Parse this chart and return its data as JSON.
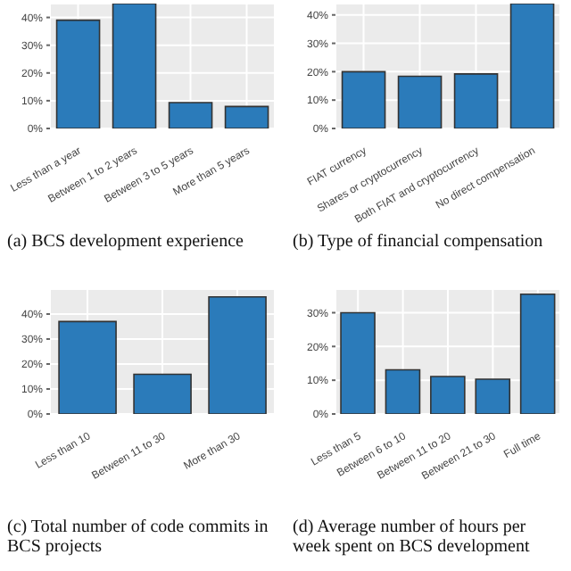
{
  "chart_data": [
    {
      "type": "bar",
      "title": "(a) BCS development experience",
      "categories": [
        "Less than a year",
        "Between 1 to 2 years",
        "Between 3 to 5 years",
        "More than 5 years"
      ],
      "values": [
        39,
        45,
        9.3,
        7.9
      ],
      "color": "#2b7bba",
      "ylim": [
        0,
        45
      ],
      "yticks": [
        {
          "value": 0,
          "label": "0%"
        },
        {
          "value": 10,
          "label": "10%"
        },
        {
          "value": 20,
          "label": "20%"
        },
        {
          "value": 30,
          "label": "30%"
        },
        {
          "value": 40,
          "label": "40%"
        }
      ],
      "grid": true
    },
    {
      "type": "bar",
      "title": "(b) Type of financial compensation",
      "categories": [
        "FIAT currency",
        "Shares or cryptocurrency",
        "Both FIAT and cryptocurrency",
        "No direct compensation"
      ],
      "values": [
        20,
        18.4,
        19.2,
        44
      ],
      "color": "#2b7bba",
      "ylim": [
        0,
        44
      ],
      "yticks": [
        {
          "value": 0,
          "label": "0%"
        },
        {
          "value": 10,
          "label": "10%"
        },
        {
          "value": 20,
          "label": "20%"
        },
        {
          "value": 30,
          "label": "30%"
        },
        {
          "value": 40,
          "label": "40%"
        }
      ],
      "grid": true
    },
    {
      "type": "bar",
      "title": "(c) Total number of code commits in BCS projects",
      "categories": [
        "Less than 10",
        "Between 11 to 30",
        "More than 30"
      ],
      "values": [
        37,
        15.9,
        46.9
      ],
      "color": "#2b7bba",
      "ylim": [
        0,
        50
      ],
      "yticks": [
        {
          "value": 0,
          "label": "0%"
        },
        {
          "value": 10,
          "label": "10%"
        },
        {
          "value": 20,
          "label": "20%"
        },
        {
          "value": 30,
          "label": "30%"
        },
        {
          "value": 40,
          "label": "40%"
        }
      ],
      "grid": true
    },
    {
      "type": "bar",
      "title": "(d) Average number of hours per week spent on BCS development",
      "categories": [
        "Less than 5",
        "Between 6 to 10",
        "Between 11 to 20",
        "Between 21 to 30",
        "Full time"
      ],
      "values": [
        30,
        13.1,
        11.1,
        10.3,
        35.5
      ],
      "color": "#2b7bba",
      "ylim": [
        0,
        37
      ],
      "yticks": [
        {
          "value": 0,
          "label": "0%"
        },
        {
          "value": 10,
          "label": "10%"
        },
        {
          "value": 20,
          "label": "20%"
        },
        {
          "value": 30,
          "label": "30%"
        }
      ],
      "grid": true
    }
  ]
}
